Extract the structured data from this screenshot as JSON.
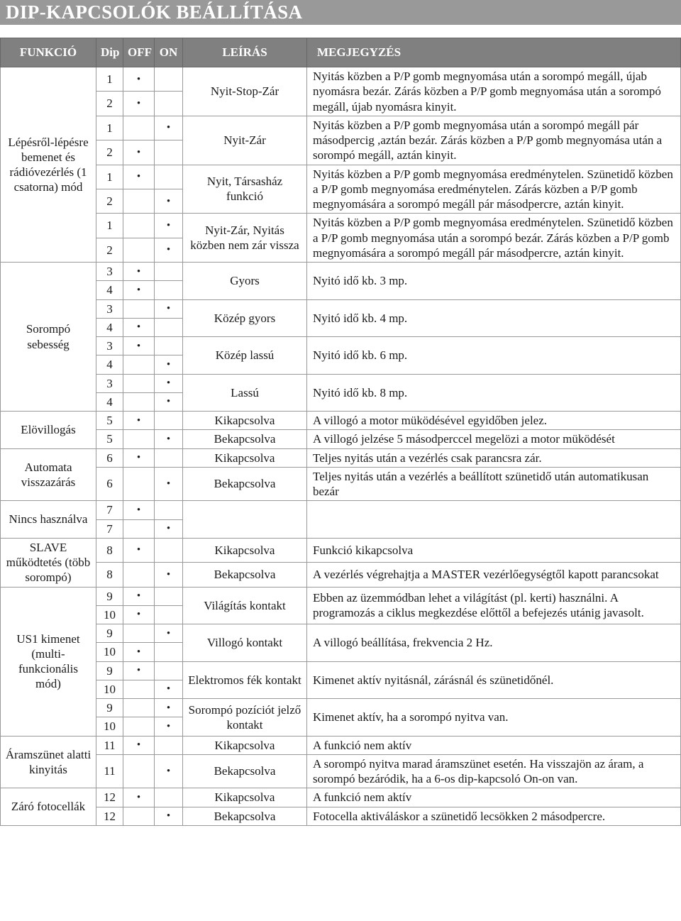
{
  "title": "DIP-KAPCSOLÓK BEÁLLÍTÁSA",
  "headers": {
    "funkcio": "FUNKCIÓ",
    "dip": "Dip",
    "off": "OFF",
    "on": "ON",
    "leiras": "LEÍRÁS",
    "megjegyzes": "MEGJEGYZÉS"
  },
  "groups": [
    {
      "func": "Lépésről-lépésre bemenet és rádióvezérlés (1 csatorna) mód",
      "rows": [
        {
          "dip": "1",
          "off": "•",
          "on": "",
          "desc": "Nyit-Stop-Zár",
          "desc_span": 2,
          "note": "Nyitás közben a P/P gomb megnyomása után a sorompó megáll, újab nyomásra bezár. Zárás közben a P/P gomb megnyomása után a sorompó megáll, újab nyomásra kinyit.",
          "note_span": 2
        },
        {
          "dip": "2",
          "off": "•",
          "on": ""
        },
        {
          "dip": "1",
          "off": "",
          "on": "•",
          "desc": "Nyit-Zár",
          "desc_span": 2,
          "note": "Nyitás közben a P/P gomb megnyomása után a sorompó megáll pár másodpercig ,aztán bezár. Zárás közben a P/P gomb megnyomása után a sorompó megáll, aztán kinyit.",
          "note_span": 2
        },
        {
          "dip": "2",
          "off": "•",
          "on": ""
        },
        {
          "dip": "1",
          "off": "•",
          "on": "",
          "desc": "Nyit,  Társasház funkció",
          "desc_span": 2,
          "note": "Nyitás közben a P/P gomb megnyomása eredménytelen. Szünetidő közben a P/P gomb megnyomása eredménytelen. Zárás közben a P/P gomb megnyomására a sorompó megáll pár másodpercre, aztán kinyit.",
          "note_span": 2
        },
        {
          "dip": "2",
          "off": "",
          "on": "•"
        },
        {
          "dip": "1",
          "off": "",
          "on": "•",
          "desc": "Nyit-Zár, Nyitás közben nem zár vissza",
          "desc_span": 2,
          "note": "Nyitás közben a P/P gomb megnyomása eredménytelen. Szünetidő közben a P/P gomb megnyomása után a sorompó bezár. Zárás közben a P/P gomb megnyomására a sorompó megáll pár másodpercre, aztán kinyit.",
          "note_span": 2
        },
        {
          "dip": "2",
          "off": "",
          "on": "•"
        }
      ]
    },
    {
      "func": "Sorompó sebesség",
      "rows": [
        {
          "dip": "3",
          "off": "•",
          "on": "",
          "desc": "Gyors",
          "desc_span": 2,
          "note": "Nyitó idő kb. 3 mp.",
          "note_span": 2
        },
        {
          "dip": "4",
          "off": "•",
          "on": ""
        },
        {
          "dip": "3",
          "off": "",
          "on": "•",
          "desc": "Közép gyors",
          "desc_span": 2,
          "note": "Nyitó idő kb. 4 mp.",
          "note_span": 2
        },
        {
          "dip": "4",
          "off": "•",
          "on": ""
        },
        {
          "dip": "3",
          "off": "•",
          "on": "",
          "desc": "Közép lassú",
          "desc_span": 2,
          "note": "Nyitó idő kb. 6 mp.",
          "note_span": 2
        },
        {
          "dip": "4",
          "off": "",
          "on": "•"
        },
        {
          "dip": "3",
          "off": "",
          "on": "•",
          "desc": "Lassú",
          "desc_span": 2,
          "note": "Nyitó idő kb. 8 mp.",
          "note_span": 2
        },
        {
          "dip": "4",
          "off": "",
          "on": "•"
        }
      ]
    },
    {
      "func": "Elövillogás",
      "rows": [
        {
          "dip": "5",
          "off": "•",
          "on": "",
          "desc": "Kikapcsolva",
          "note": "A villogó a motor müködésével egyidőben jelez."
        },
        {
          "dip": "5",
          "off": "",
          "on": "•",
          "desc": "Bekapcsolva",
          "note": "A villogó jelzése 5 másodperccel megelözi a motor müködését"
        }
      ]
    },
    {
      "func": "Automata visszazárás",
      "rows": [
        {
          "dip": "6",
          "off": "•",
          "on": "",
          "desc": "Kikapcsolva",
          "note": "Teljes nyitás után a vezérlés csak parancsra zár."
        },
        {
          "dip": "6",
          "off": "",
          "on": "•",
          "desc": "Bekapcsolva",
          "note": "Teljes nyitás után a vezérlés a beállított szünetidő után automatikusan bezár"
        }
      ]
    },
    {
      "func": "Nincs használva",
      "rows": [
        {
          "dip": "7",
          "off": "•",
          "on": "",
          "desc": "",
          "desc_span": 2,
          "note": "",
          "note_span": 2
        },
        {
          "dip": "7",
          "off": "",
          "on": "•"
        }
      ]
    },
    {
      "func": "SLAVE működtetés   (több sorompó)",
      "rows": [
        {
          "dip": "8",
          "off": "•",
          "on": "",
          "desc": "Kikapcsolva",
          "note": "Funkció kikapcsolva"
        },
        {
          "dip": "8",
          "off": "",
          "on": "•",
          "desc": "Bekapcsolva",
          "note": "A vezérlés végrehajtja a MASTER vezérlőegységtől kapott parancsokat"
        }
      ]
    },
    {
      "func": "US1 kimenet (multi- funkcionális  mód)",
      "rows": [
        {
          "dip": "9",
          "off": "•",
          "on": "",
          "desc": "Világítás kontakt",
          "desc_span": 2,
          "note": "Ebben az üzemmódban lehet a világítást (pl. kerti) használni. A programozás a ciklus megkezdése előttől a befejezés utánig javasolt.",
          "note_span": 2
        },
        {
          "dip": "10",
          "off": "•",
          "on": ""
        },
        {
          "dip": "9",
          "off": "",
          "on": "•",
          "desc": "Villogó kontakt",
          "desc_span": 2,
          "note": "A villogó beállítása, frekvencia 2 Hz.",
          "note_span": 2
        },
        {
          "dip": "10",
          "off": "•",
          "on": ""
        },
        {
          "dip": "9",
          "off": "•",
          "on": "",
          "desc": "Elektromos fék kontakt",
          "desc_span": 2,
          "note": "Kimenet aktív nyitásnál, zárásnál és szünetidőnél.",
          "note_span": 2
        },
        {
          "dip": "10",
          "off": "",
          "on": "•"
        },
        {
          "dip": "9",
          "off": "",
          "on": "•",
          "desc": "Sorompó pozíciót jelző kontakt",
          "desc_span": 2,
          "note": "Kimenet aktív, ha a sorompó nyitva van.",
          "note_span": 2
        },
        {
          "dip": "10",
          "off": "",
          "on": "•"
        }
      ]
    },
    {
      "func": "Áramszünet alatti kinyitás",
      "rows": [
        {
          "dip": "11",
          "off": "•",
          "on": "",
          "desc": "Kikapcsolva",
          "note": "A funkció nem aktív"
        },
        {
          "dip": "11",
          "off": "",
          "on": "•",
          "desc": "Bekapcsolva",
          "note": "A sorompó nyitva marad áramszünet esetén. Ha visszajön az áram, a sorompó bezáródik, ha a 6-os dip-kapcsoló On-on van."
        }
      ]
    },
    {
      "func": "Záró fotocellák",
      "rows": [
        {
          "dip": "12",
          "off": "•",
          "on": "",
          "desc": "Kikapcsolva",
          "note": "A funkció nem aktív"
        },
        {
          "dip": "12",
          "off": "",
          "on": "•",
          "desc": "Bekapcsolva",
          "note": "Fotocella aktiváláskor a szünetidő lecsökken 2 másodpercre."
        }
      ]
    }
  ]
}
